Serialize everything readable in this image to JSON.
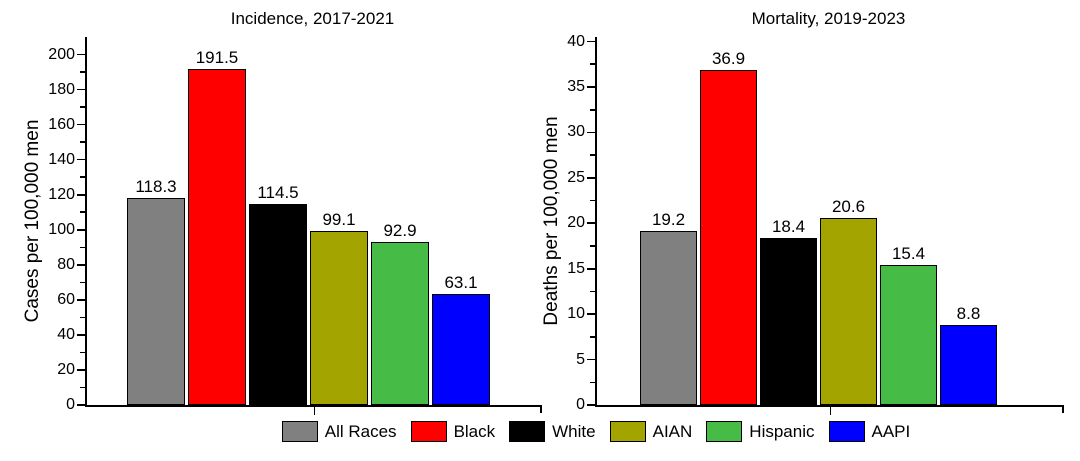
{
  "chart_data": [
    {
      "type": "bar",
      "title": "Incidence, 2017-2021",
      "xlabel": "",
      "ylabel": "Cases per 100,000 men",
      "categories": [
        "All Races",
        "Black",
        "White",
        "AIAN",
        "Hispanic",
        "AAPI"
      ],
      "values": [
        118.3,
        191.5,
        114.5,
        99.1,
        92.9,
        63.1
      ],
      "value_labels": [
        "118.3",
        "191.5",
        "114.5",
        "99.1",
        "92.9",
        "63.1"
      ],
      "bar_colors": [
        "#808080",
        "#FF0000",
        "#000000",
        "#A3A400",
        "#46BC46",
        "#0000FF"
      ],
      "ylim": [
        0,
        210
      ],
      "yticks": {
        "major_step": 20,
        "minor_step": 10,
        "max_label": 200
      },
      "grid": false,
      "data_labels": true
    },
    {
      "type": "bar",
      "title": "Mortality, 2019-2023",
      "xlabel": "",
      "ylabel": "Deaths per 100,000 men",
      "categories": [
        "All Races",
        "Black",
        "White",
        "AIAN",
        "Hispanic",
        "AAPI"
      ],
      "values": [
        19.2,
        36.9,
        18.4,
        20.6,
        15.4,
        8.8
      ],
      "value_labels": [
        "19.2",
        "36.9",
        "18.4",
        "20.6",
        "15.4",
        "8.8"
      ],
      "bar_colors": [
        "#808080",
        "#FF0000",
        "#000000",
        "#A3A400",
        "#46BC46",
        "#0000FF"
      ],
      "ylim": [
        0,
        40.5
      ],
      "yticks": {
        "major_step": 5,
        "minor_step": 2.5,
        "max_label": 40
      },
      "grid": false,
      "data_labels": true
    }
  ],
  "legend": {
    "position": "bottom-center",
    "entries": [
      {
        "label": "All Races",
        "color": "#808080"
      },
      {
        "label": "Black",
        "color": "#FF0000"
      },
      {
        "label": "White",
        "color": "#000000"
      },
      {
        "label": "AIAN",
        "color": "#A3A400"
      },
      {
        "label": "Hispanic",
        "color": "#46BC46"
      },
      {
        "label": "AAPI",
        "color": "#0000FF"
      }
    ]
  },
  "colors": {
    "axis": "#000000",
    "text": "#000000",
    "background": "#FFFFFF"
  }
}
